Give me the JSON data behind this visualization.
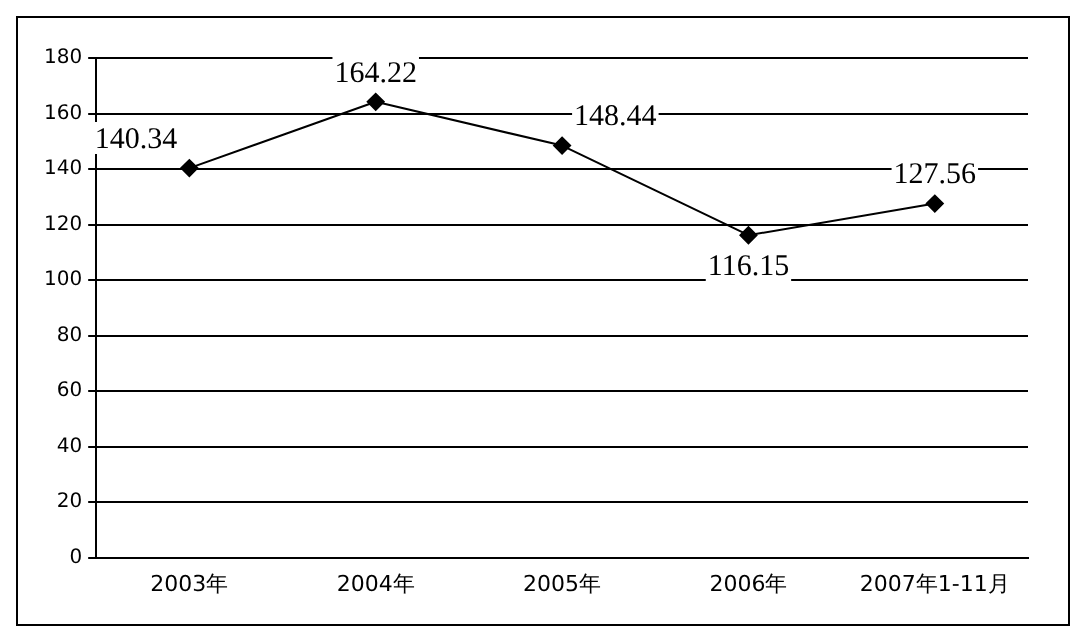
{
  "chart_data": {
    "type": "line",
    "categories": [
      "2003年",
      "2004年",
      "2005年",
      "2006年",
      "2007年1-11月"
    ],
    "series": [
      {
        "color": "#000000",
        "values": [
          140.34,
          164.22,
          148.44,
          116.15,
          127.56
        ]
      }
    ],
    "ylim": [
      0,
      180
    ],
    "yticks": [
      0,
      20,
      40,
      60,
      80,
      100,
      120,
      140,
      160,
      180
    ],
    "grid": "y",
    "legend": false,
    "marker": "diamond",
    "line_style": "solid",
    "data_labels": true
  }
}
